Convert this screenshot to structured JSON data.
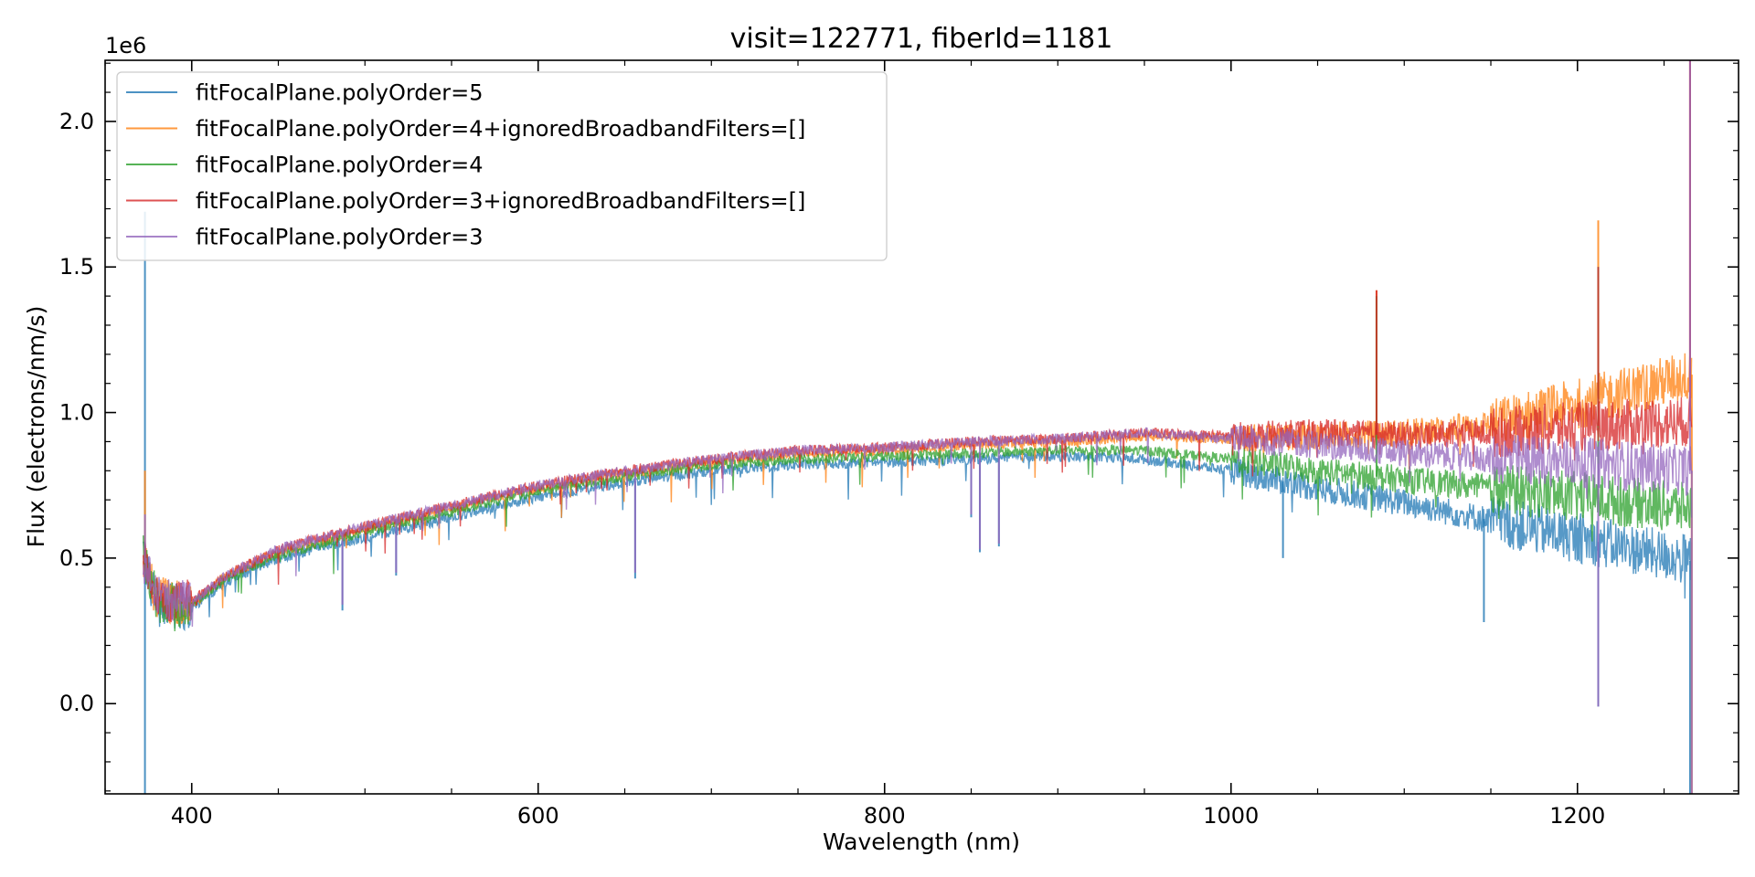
{
  "chart_data": {
    "type": "line",
    "title": "visit=122771, fiberId=1181",
    "xlabel": "Wavelength (nm)",
    "ylabel": "Flux (electrons/nm/s)",
    "y_offset_label": "1e6",
    "y_scale_factor": 1000000,
    "xlim": [
      350,
      1293
    ],
    "ylim": [
      -0.31,
      2.21
    ],
    "x_ticks": [
      400,
      600,
      800,
      1000,
      1200
    ],
    "x_tick_labels": [
      "400",
      "600",
      "800",
      "1000",
      "1200"
    ],
    "y_ticks": [
      0.0,
      0.5,
      1.0,
      1.5,
      2.0
    ],
    "y_tick_labels": [
      "0.0",
      "0.5",
      "1.0",
      "1.5",
      "2.0"
    ],
    "grid": false,
    "legend_position": "upper-left",
    "series": [
      {
        "name": "fitFocalPlane.polyOrder=5",
        "color": "#1f77b4",
        "points": [
          [
            372,
            0.5
          ],
          [
            380,
            0.34
          ],
          [
            400,
            0.33
          ],
          [
            420,
            0.42
          ],
          [
            450,
            0.5
          ],
          [
            500,
            0.57
          ],
          [
            550,
            0.64
          ],
          [
            600,
            0.71
          ],
          [
            650,
            0.76
          ],
          [
            700,
            0.8
          ],
          [
            750,
            0.82
          ],
          [
            800,
            0.83
          ],
          [
            850,
            0.84
          ],
          [
            900,
            0.85
          ],
          [
            950,
            0.84
          ],
          [
            1000,
            0.8
          ],
          [
            1050,
            0.74
          ],
          [
            1100,
            0.69
          ],
          [
            1150,
            0.63
          ],
          [
            1200,
            0.57
          ],
          [
            1266,
            0.49
          ]
        ],
        "spikes": [
          [
            373,
            1.69
          ],
          [
            373,
            -0.35
          ],
          [
            487,
            0.32
          ],
          [
            518,
            0.44
          ],
          [
            656,
            0.43
          ],
          [
            850,
            0.64
          ],
          [
            855,
            0.52
          ],
          [
            866,
            0.54
          ],
          [
            1030,
            0.5
          ],
          [
            1146,
            0.28
          ],
          [
            1212,
            -0.01
          ],
          [
            1265,
            -0.4
          ]
        ]
      },
      {
        "name": "fitFocalPlane.polyOrder=4+ignoredBroadbandFilters=[]",
        "color": "#ff7f0e",
        "points": [
          [
            372,
            0.5
          ],
          [
            380,
            0.36
          ],
          [
            400,
            0.34
          ],
          [
            420,
            0.44
          ],
          [
            450,
            0.52
          ],
          [
            500,
            0.6
          ],
          [
            550,
            0.67
          ],
          [
            600,
            0.74
          ],
          [
            650,
            0.79
          ],
          [
            700,
            0.83
          ],
          [
            750,
            0.86
          ],
          [
            800,
            0.87
          ],
          [
            850,
            0.89
          ],
          [
            900,
            0.9
          ],
          [
            950,
            0.92
          ],
          [
            1000,
            0.91
          ],
          [
            1050,
            0.92
          ],
          [
            1100,
            0.93
          ],
          [
            1150,
            0.96
          ],
          [
            1200,
            1.03
          ],
          [
            1266,
            1.13
          ]
        ],
        "spikes": [
          [
            373,
            0.8
          ],
          [
            1084,
            1.42
          ],
          [
            1212,
            1.66
          ],
          [
            1265,
            2.3
          ],
          [
            1266,
            -0.4
          ]
        ]
      },
      {
        "name": "fitFocalPlane.polyOrder=4",
        "color": "#2ca02c",
        "points": [
          [
            372,
            0.5
          ],
          [
            380,
            0.35
          ],
          [
            400,
            0.34
          ],
          [
            420,
            0.43
          ],
          [
            450,
            0.51
          ],
          [
            500,
            0.59
          ],
          [
            550,
            0.66
          ],
          [
            600,
            0.73
          ],
          [
            650,
            0.78
          ],
          [
            700,
            0.82
          ],
          [
            750,
            0.84
          ],
          [
            800,
            0.85
          ],
          [
            850,
            0.86
          ],
          [
            900,
            0.87
          ],
          [
            950,
            0.87
          ],
          [
            1000,
            0.84
          ],
          [
            1050,
            0.8
          ],
          [
            1100,
            0.77
          ],
          [
            1150,
            0.74
          ],
          [
            1200,
            0.71
          ],
          [
            1266,
            0.67
          ]
        ],
        "spikes": [
          [
            1084,
            1.4
          ],
          [
            1212,
            1.5
          ]
        ]
      },
      {
        "name": "fitFocalPlane.polyOrder=3+ignoredBroadbandFilters=[]",
        "color": "#d62728",
        "points": [
          [
            372,
            0.5
          ],
          [
            380,
            0.36
          ],
          [
            400,
            0.35
          ],
          [
            420,
            0.44
          ],
          [
            450,
            0.53
          ],
          [
            500,
            0.61
          ],
          [
            550,
            0.68
          ],
          [
            600,
            0.75
          ],
          [
            650,
            0.8
          ],
          [
            700,
            0.84
          ],
          [
            750,
            0.87
          ],
          [
            800,
            0.88
          ],
          [
            850,
            0.9
          ],
          [
            900,
            0.91
          ],
          [
            950,
            0.93
          ],
          [
            1000,
            0.92
          ],
          [
            1050,
            0.93
          ],
          [
            1100,
            0.92
          ],
          [
            1150,
            0.93
          ],
          [
            1200,
            0.95
          ],
          [
            1266,
            0.97
          ]
        ],
        "spikes": [
          [
            1084,
            1.42
          ],
          [
            1212,
            1.5
          ],
          [
            1265,
            2.3
          ]
        ]
      },
      {
        "name": "fitFocalPlane.polyOrder=3",
        "color": "#9467bd",
        "points": [
          [
            372,
            0.5
          ],
          [
            380,
            0.36
          ],
          [
            400,
            0.35
          ],
          [
            420,
            0.44
          ],
          [
            450,
            0.53
          ],
          [
            500,
            0.61
          ],
          [
            550,
            0.68
          ],
          [
            600,
            0.75
          ],
          [
            650,
            0.8
          ],
          [
            700,
            0.84
          ],
          [
            750,
            0.87
          ],
          [
            800,
            0.88
          ],
          [
            850,
            0.9
          ],
          [
            900,
            0.91
          ],
          [
            950,
            0.93
          ],
          [
            1000,
            0.91
          ],
          [
            1050,
            0.89
          ],
          [
            1100,
            0.86
          ],
          [
            1150,
            0.84
          ],
          [
            1200,
            0.83
          ],
          [
            1266,
            0.8
          ]
        ],
        "spikes": [
          [
            373,
            0.65
          ],
          [
            487,
            0.34
          ],
          [
            518,
            0.45
          ],
          [
            656,
            0.45
          ],
          [
            850,
            0.65
          ],
          [
            855,
            0.53
          ],
          [
            866,
            0.55
          ],
          [
            1212,
            -0.01
          ],
          [
            1265,
            2.3
          ],
          [
            1266,
            -0.4
          ]
        ]
      }
    ]
  }
}
